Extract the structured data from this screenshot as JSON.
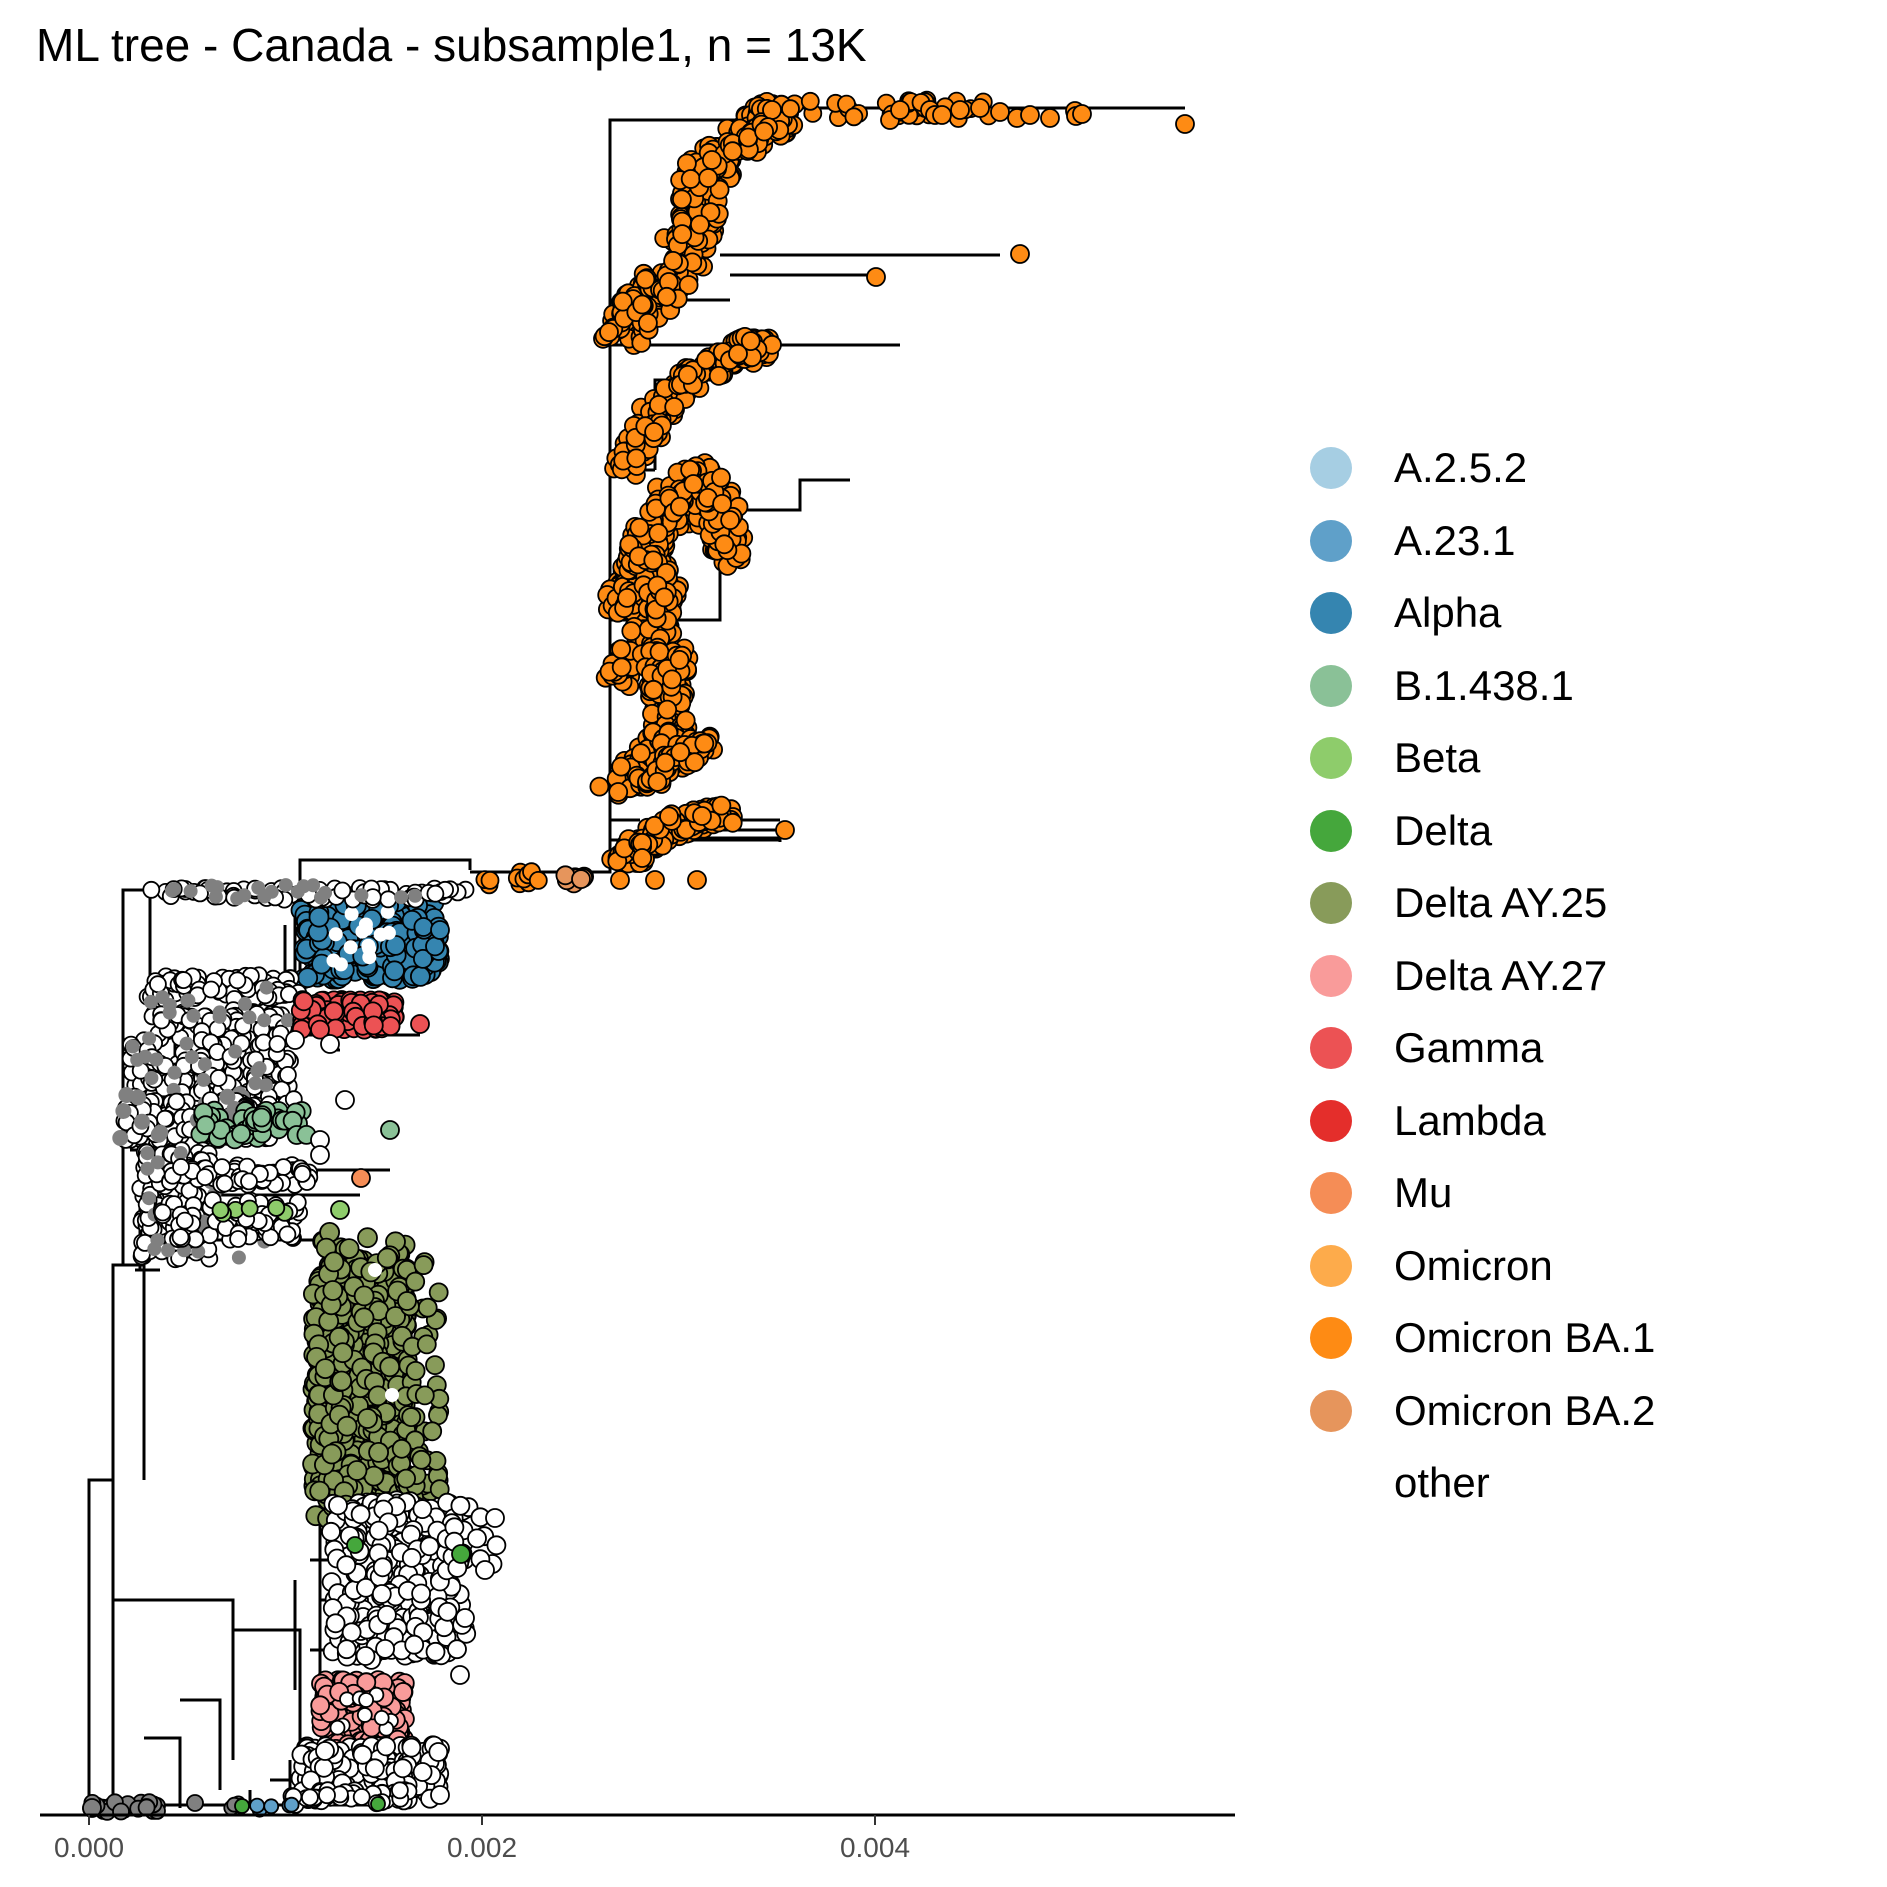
{
  "chart_data": {
    "type": "tree",
    "title": "ML tree - Canada - subsample1, n = 13K",
    "xlabel": "",
    "ylabel": "",
    "x_axis": {
      "ticks": [
        0.0,
        0.002,
        0.004
      ],
      "tick_labels": [
        "0.000",
        "0.002",
        "0.004"
      ],
      "range": [
        -0.00025,
        0.0058
      ]
    },
    "grid": false,
    "legend_position": "right",
    "legend": [
      {
        "name": "A.2.5.2",
        "color": "#a6cee3"
      },
      {
        "name": "A.23.1",
        "color": "#5fa0c9"
      },
      {
        "name": "Alpha",
        "color": "#3585b0"
      },
      {
        "name": "B.1.438.1",
        "color": "#8ac197"
      },
      {
        "name": "Beta",
        "color": "#8ecc6b"
      },
      {
        "name": "Delta",
        "color": "#45a73c"
      },
      {
        "name": "Delta AY.25",
        "color": "#889b5a"
      },
      {
        "name": "Delta AY.27",
        "color": "#f99b9a"
      },
      {
        "name": "Gamma",
        "color": "#ec5254"
      },
      {
        "name": "Lambda",
        "color": "#e42e2b"
      },
      {
        "name": "Mu",
        "color": "#f58d56"
      },
      {
        "name": "Omicron",
        "color": "#fdab4b"
      },
      {
        "name": "Omicron BA.1",
        "color": "#fe8b14"
      },
      {
        "name": "Omicron BA.2",
        "color": "#e6955c"
      },
      {
        "name": "other",
        "color": "#ffffff"
      }
    ],
    "clades": [
      {
        "lineage": "Omicron BA.1",
        "x_min": 0.0027,
        "x_max": 0.0056,
        "tips_approx": 1400
      },
      {
        "lineage": "Omicron BA.2",
        "x_min": 0.0024,
        "x_max": 0.0025
      },
      {
        "lineage": "Alpha",
        "x_min": 0.0011,
        "x_max": 0.0018
      },
      {
        "lineage": "Gamma",
        "x_min": 0.0011,
        "x_max": 0.0017
      },
      {
        "lineage": "B.1.438.1",
        "x_min": 0.0007,
        "x_max": 0.0016
      },
      {
        "lineage": "Mu",
        "x_min": 0.0014,
        "x_max": 0.0014
      },
      {
        "lineage": "Beta",
        "x_min": 0.0008,
        "x_max": 0.0013
      },
      {
        "lineage": "Delta AY.25",
        "x_min": 0.0013,
        "x_max": 0.0018
      },
      {
        "lineage": "Delta",
        "x_min": 0.0013,
        "x_max": 0.0019
      },
      {
        "lineage": "Delta AY.27",
        "x_min": 0.0012,
        "x_max": 0.0017
      },
      {
        "lineage": "A.23.1",
        "x_min": 0.0008,
        "x_max": 0.001
      }
    ]
  }
}
